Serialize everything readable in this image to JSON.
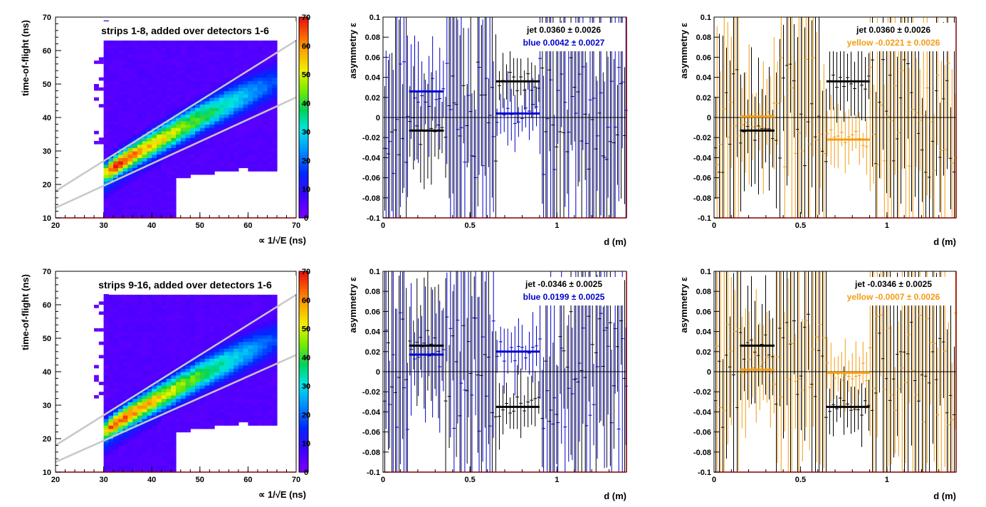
{
  "colors": {
    "jet": "#000000",
    "blue": "#0000cc",
    "yellow": "#f39c12",
    "band_lines": "#c8c8c8",
    "frame_right": "#800000"
  },
  "chart_data": [
    {
      "id": "tof-top",
      "type": "heatmap",
      "title": "strips 1-8, added over detectors 1-6",
      "xlabel": "∝ 1/√E (ns)",
      "ylabel": "time-of-flight (ns)",
      "xlim": [
        20,
        70
      ],
      "ylim": [
        10,
        70
      ],
      "xticks": [
        "20",
        "30",
        "40",
        "50",
        "60",
        "70"
      ],
      "yticks": [
        "10",
        "20",
        "30",
        "40",
        "50",
        "60",
        "70"
      ],
      "colorbar": {
        "min": 0,
        "max": 70,
        "ticks": [
          "0",
          "10",
          "20",
          "30",
          "40",
          "50",
          "60",
          "70"
        ]
      },
      "ridge": {
        "x": [
          30,
          34,
          40,
          50,
          60,
          66
        ],
        "y": [
          23,
          27,
          32,
          40,
          47,
          51
        ]
      },
      "band_lines": [
        {
          "x": [
            20,
            70
          ],
          "y": [
            18,
            63
          ]
        },
        {
          "x": [
            20,
            70
          ],
          "y": [
            13,
            46
          ]
        }
      ],
      "grid": false
    },
    {
      "id": "asym-blue-top",
      "type": "scatter",
      "xlabel": "d (m)",
      "ylabel": "asymmetry ε",
      "xlim": [
        0,
        1.4
      ],
      "ylim": [
        -0.1,
        0.1
      ],
      "xticks": [
        "0",
        "0.5",
        "1"
      ],
      "yticks": [
        "-0.1",
        "-0.08",
        "-0.06",
        "-0.04",
        "-0.02",
        "0",
        "0.02",
        "0.04",
        "0.06",
        "0.08",
        "0.1"
      ],
      "annotations": [
        {
          "text": "jet  0.0360 ± 0.0026",
          "color": "jet"
        },
        {
          "text": "blue  0.0042 ± 0.0027",
          "color": "blue"
        }
      ],
      "series": [
        {
          "name": "jet",
          "color": "jet",
          "segments": [
            {
              "x": [
                0.15,
                0.35
              ],
              "y": -0.013
            },
            {
              "x": [
                0.65,
                0.9
              ],
              "y": 0.036
            }
          ]
        },
        {
          "name": "blue",
          "color": "blue",
          "segments": [
            {
              "x": [
                0.15,
                0.35
              ],
              "y": 0.026
            },
            {
              "x": [
                0.65,
                0.9
              ],
              "y": 0.004
            }
          ]
        }
      ]
    },
    {
      "id": "asym-yellow-top",
      "type": "scatter",
      "xlabel": "d (m)",
      "ylabel": "asymmetry ε",
      "xlim": [
        0,
        1.4
      ],
      "ylim": [
        -0.1,
        0.1
      ],
      "xticks": [
        "0",
        "0.5",
        "1"
      ],
      "yticks": [
        "-0.1",
        "-0.08",
        "-0.06",
        "-0.04",
        "-0.02",
        "0",
        "0.02",
        "0.04",
        "0.06",
        "0.08",
        "0.1"
      ],
      "annotations": [
        {
          "text": "jet  0.0360 ± 0.0026",
          "color": "jet"
        },
        {
          "text": "yellow -0.0221 ± 0.0026",
          "color": "yellow"
        }
      ],
      "series": [
        {
          "name": "jet",
          "color": "jet",
          "segments": [
            {
              "x": [
                0.15,
                0.35
              ],
              "y": -0.013
            },
            {
              "x": [
                0.65,
                0.9
              ],
              "y": 0.036
            }
          ]
        },
        {
          "name": "yellow",
          "color": "yellow",
          "segments": [
            {
              "x": [
                0.15,
                0.35
              ],
              "y": 0.001
            },
            {
              "x": [
                0.65,
                0.9
              ],
              "y": -0.022
            }
          ]
        }
      ]
    },
    {
      "id": "tof-bottom",
      "type": "heatmap",
      "title": "strips 9-16, added over detectors 1-6",
      "xlabel": "∝ 1/√E (ns)",
      "ylabel": "time-of-flight (ns)",
      "xlim": [
        20,
        70
      ],
      "ylim": [
        10,
        70
      ],
      "xticks": [
        "20",
        "30",
        "40",
        "50",
        "60",
        "70"
      ],
      "yticks": [
        "10",
        "20",
        "30",
        "40",
        "50",
        "60",
        "70"
      ],
      "colorbar": {
        "min": 0,
        "max": 70,
        "ticks": [
          "0",
          "10",
          "20",
          "30",
          "40",
          "50",
          "60",
          "70"
        ]
      },
      "ridge": {
        "x": [
          30,
          34,
          40,
          50,
          60,
          66
        ],
        "y": [
          22,
          26,
          31,
          39,
          46,
          50
        ]
      },
      "band_lines": [
        {
          "x": [
            20,
            70
          ],
          "y": [
            18,
            63
          ]
        },
        {
          "x": [
            20,
            70
          ],
          "y": [
            13,
            45
          ]
        }
      ],
      "grid": false
    },
    {
      "id": "asym-blue-bottom",
      "type": "scatter",
      "xlabel": "d (m)",
      "ylabel": "asymmetry ε",
      "xlim": [
        0,
        1.4
      ],
      "ylim": [
        -0.1,
        0.1
      ],
      "xticks": [
        "0",
        "0.5",
        "1"
      ],
      "yticks": [
        "-0.1",
        "-0.08",
        "-0.06",
        "-0.04",
        "-0.02",
        "0",
        "0.02",
        "0.04",
        "0.06",
        "0.08",
        "0.1"
      ],
      "annotations": [
        {
          "text": "jet -0.0346 ± 0.0025",
          "color": "jet"
        },
        {
          "text": "blue  0.0199 ± 0.0025",
          "color": "blue"
        }
      ],
      "series": [
        {
          "name": "jet",
          "color": "jet",
          "segments": [
            {
              "x": [
                0.15,
                0.35
              ],
              "y": 0.026
            },
            {
              "x": [
                0.65,
                0.9
              ],
              "y": -0.035
            }
          ]
        },
        {
          "name": "blue",
          "color": "blue",
          "segments": [
            {
              "x": [
                0.15,
                0.35
              ],
              "y": 0.017
            },
            {
              "x": [
                0.65,
                0.9
              ],
              "y": 0.02
            }
          ]
        }
      ]
    },
    {
      "id": "asym-yellow-bottom",
      "type": "scatter",
      "xlabel": "d (m)",
      "ylabel": "asymmetry ε",
      "xlim": [
        0,
        1.4
      ],
      "ylim": [
        -0.1,
        0.1
      ],
      "xticks": [
        "0",
        "0.5",
        "1"
      ],
      "yticks": [
        "-0.1",
        "-0.08",
        "-0.06",
        "-0.04",
        "-0.02",
        "0",
        "0.02",
        "0.04",
        "0.06",
        "0.08",
        "0.1"
      ],
      "annotations": [
        {
          "text": "jet -0.0346 ± 0.0025",
          "color": "jet"
        },
        {
          "text": "yellow -0.0007 ± 0.0026",
          "color": "yellow"
        }
      ],
      "series": [
        {
          "name": "jet",
          "color": "jet",
          "segments": [
            {
              "x": [
                0.15,
                0.35
              ],
              "y": 0.026
            },
            {
              "x": [
                0.65,
                0.9
              ],
              "y": -0.035
            }
          ]
        },
        {
          "name": "yellow",
          "color": "yellow",
          "segments": [
            {
              "x": [
                0.15,
                0.35
              ],
              "y": 0.002
            },
            {
              "x": [
                0.65,
                0.9
              ],
              "y": -0.001
            }
          ]
        }
      ]
    }
  ]
}
